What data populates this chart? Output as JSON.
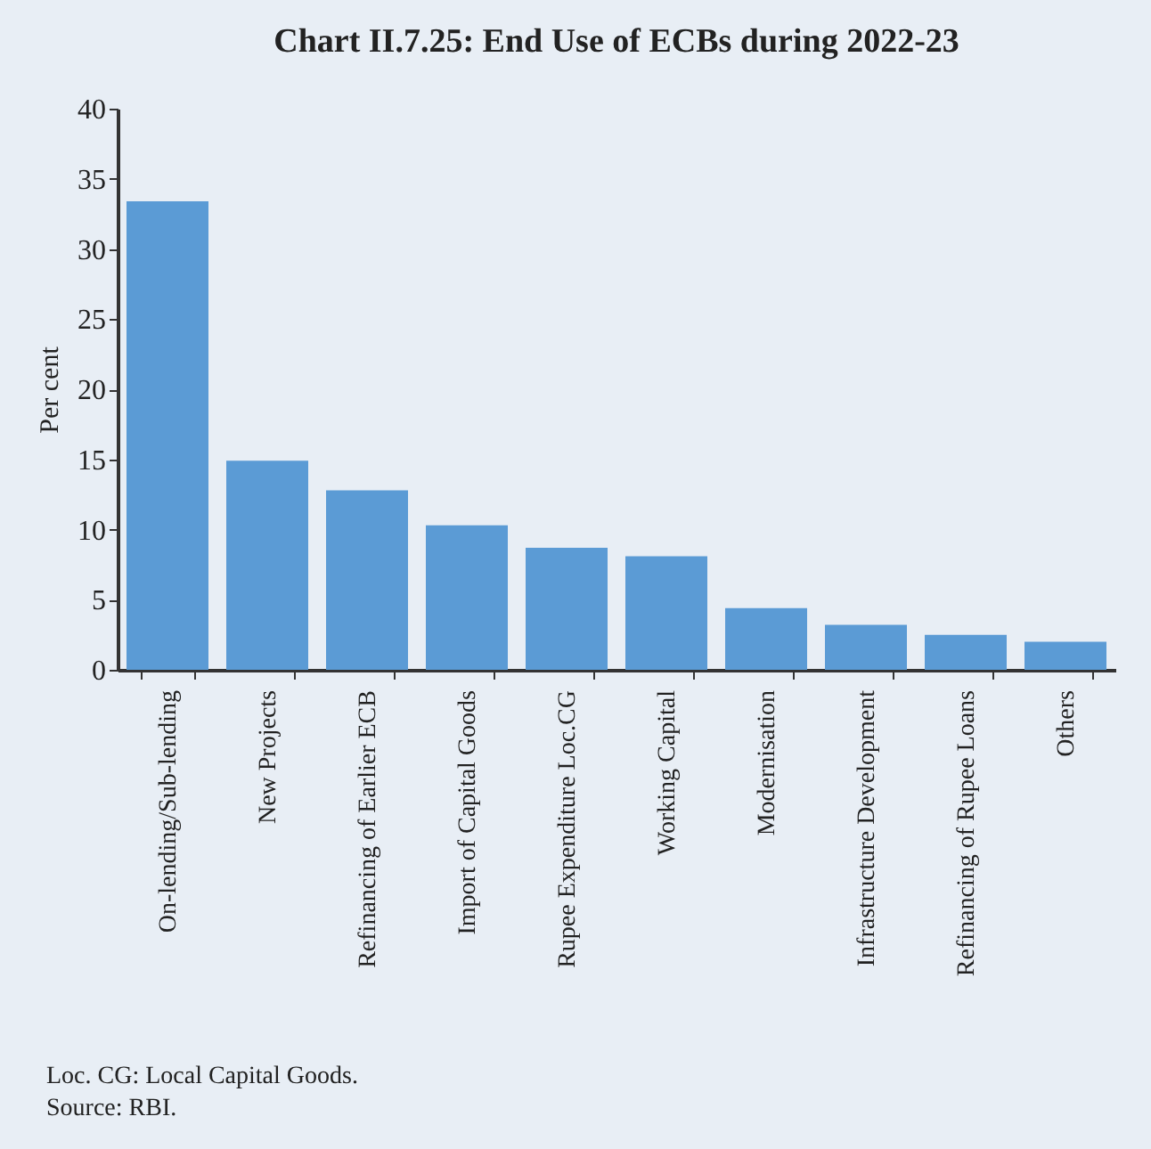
{
  "chart_data": {
    "type": "bar",
    "title": "Chart II.7.25: End Use of ECBs during 2022-23",
    "ylabel": "Per cent",
    "categories": [
      "On-lending/Sub-lending",
      "New Projects",
      "Refinancing of Earlier ECB",
      "Import of Capital Goods",
      "Rupee Expenditure Loc.CG",
      "Working Capital",
      "Modernisation",
      "Infrastructure Development",
      "Refinancing of Rupee Loans",
      "Others"
    ],
    "values": [
      33.4,
      14.9,
      12.8,
      10.3,
      8.7,
      8.1,
      4.4,
      3.2,
      2.5,
      2.0
    ],
    "color": "#5b9bd5",
    "ylim": [
      0,
      40
    ],
    "yticks": [
      0,
      5,
      10,
      15,
      20,
      25,
      30,
      35,
      40
    ],
    "grid": false,
    "annotations": [
      "Loc. CG: Local Capital Goods.",
      "Source: RBI."
    ]
  }
}
